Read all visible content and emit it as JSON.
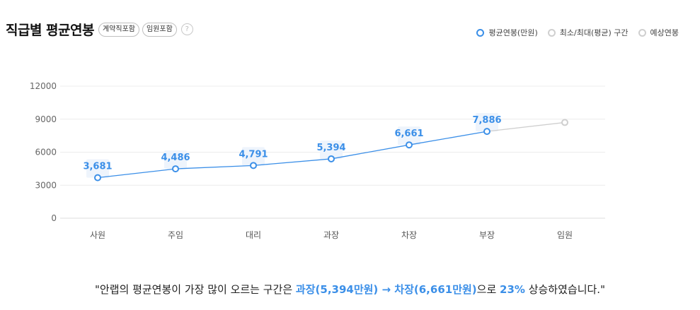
{
  "header": {
    "title": "직급별 평균연봉",
    "pill_contract": "계약직포함",
    "pill_executive": "임원포함",
    "help_glyph": "?"
  },
  "legend": {
    "avg": "평균연봉(만원)",
    "range": "최소/최대(평균) 구간",
    "forecast": "예상연봉"
  },
  "colors": {
    "accent": "#3b8fe8",
    "forecast": "#cfcfcf",
    "grid": "#ececec"
  },
  "chart_data": {
    "type": "line",
    "categories": [
      "사원",
      "주임",
      "대리",
      "과장",
      "차장",
      "부장",
      "임원"
    ],
    "series": [
      {
        "name": "평균연봉(만원)",
        "values": [
          3681,
          4486,
          4791,
          5394,
          6661,
          7886,
          null
        ]
      },
      {
        "name": "예상연봉",
        "values": [
          null,
          null,
          null,
          null,
          null,
          7886,
          8700
        ]
      }
    ],
    "data_labels": [
      "3,681",
      "4,486",
      "4,791",
      "5,394",
      "6,661",
      "7,886"
    ],
    "yticks": [
      "0",
      "3000",
      "6000",
      "9000",
      "12000"
    ],
    "ylim": [
      0,
      12000
    ],
    "grid": true,
    "legend_position": "top-right"
  },
  "summary": {
    "prefix": "\"안랩의 평균연봉이 가장 많이 오르는 구간은 ",
    "highlight": "과장(5,394만원) → 차장(6,661만원)",
    "middle": "으로 ",
    "percent": "23%",
    "suffix": " 상승하였습니다.\""
  }
}
